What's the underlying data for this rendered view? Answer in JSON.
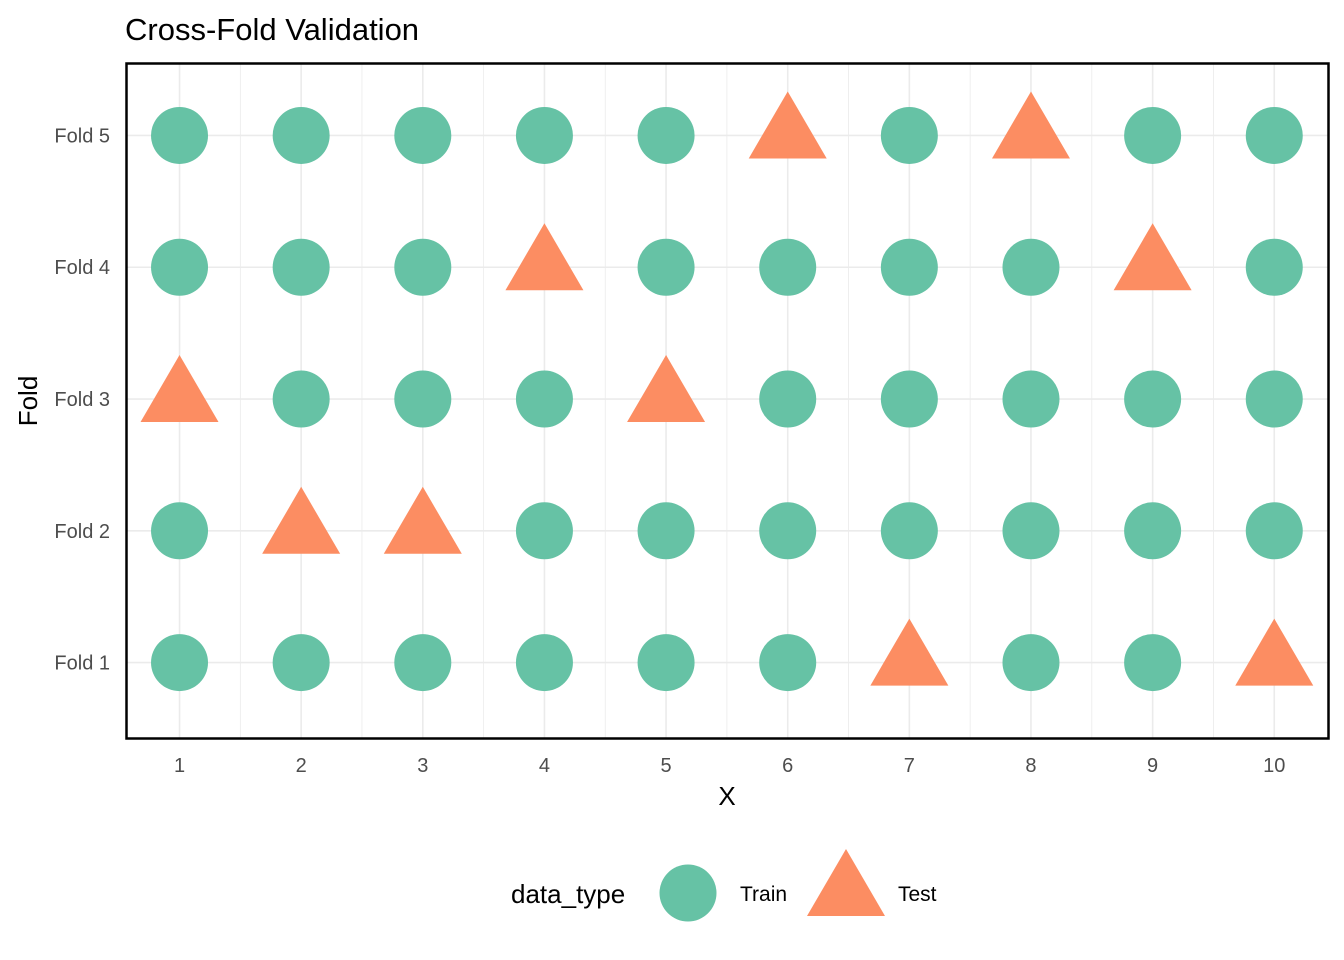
{
  "chart_data": {
    "type": "scatter",
    "title": "Cross-Fold Validation",
    "xlabel": "X",
    "ylabel": "Fold",
    "x_ticks": [
      "1",
      "2",
      "3",
      "4",
      "5",
      "6",
      "7",
      "8",
      "9",
      "10"
    ],
    "y_categories": [
      "Fold 1",
      "Fold 2",
      "Fold 3",
      "Fold 4",
      "Fold 5"
    ],
    "xlim": [
      0.56,
      10.45
    ],
    "grid": true,
    "legend": {
      "title": "data_type",
      "position": "bottom",
      "entries": [
        {
          "label": "Train",
          "shape": "circle"
        },
        {
          "label": "Test",
          "shape": "triangle"
        }
      ]
    },
    "colors": {
      "Train": "#66c2a5",
      "Test": "#fc8d62",
      "grid": "#ebebeb",
      "border": "#000000"
    },
    "series": [
      {
        "name": "Train",
        "shape": "circle",
        "points": [
          [
            1,
            "Fold 1"
          ],
          [
            2,
            "Fold 1"
          ],
          [
            3,
            "Fold 1"
          ],
          [
            4,
            "Fold 1"
          ],
          [
            5,
            "Fold 1"
          ],
          [
            6,
            "Fold 1"
          ],
          [
            8,
            "Fold 1"
          ],
          [
            9,
            "Fold 1"
          ],
          [
            1,
            "Fold 2"
          ],
          [
            4,
            "Fold 2"
          ],
          [
            5,
            "Fold 2"
          ],
          [
            6,
            "Fold 2"
          ],
          [
            7,
            "Fold 2"
          ],
          [
            8,
            "Fold 2"
          ],
          [
            9,
            "Fold 2"
          ],
          [
            10,
            "Fold 2"
          ],
          [
            2,
            "Fold 3"
          ],
          [
            3,
            "Fold 3"
          ],
          [
            4,
            "Fold 3"
          ],
          [
            6,
            "Fold 3"
          ],
          [
            7,
            "Fold 3"
          ],
          [
            8,
            "Fold 3"
          ],
          [
            9,
            "Fold 3"
          ],
          [
            10,
            "Fold 3"
          ],
          [
            1,
            "Fold 4"
          ],
          [
            2,
            "Fold 4"
          ],
          [
            3,
            "Fold 4"
          ],
          [
            5,
            "Fold 4"
          ],
          [
            6,
            "Fold 4"
          ],
          [
            7,
            "Fold 4"
          ],
          [
            8,
            "Fold 4"
          ],
          [
            10,
            "Fold 4"
          ],
          [
            1,
            "Fold 5"
          ],
          [
            2,
            "Fold 5"
          ],
          [
            3,
            "Fold 5"
          ],
          [
            4,
            "Fold 5"
          ],
          [
            5,
            "Fold 5"
          ],
          [
            7,
            "Fold 5"
          ],
          [
            9,
            "Fold 5"
          ],
          [
            10,
            "Fold 5"
          ]
        ]
      },
      {
        "name": "Test",
        "shape": "triangle",
        "points": [
          [
            7,
            "Fold 1"
          ],
          [
            10,
            "Fold 1"
          ],
          [
            2,
            "Fold 2"
          ],
          [
            3,
            "Fold 2"
          ],
          [
            1,
            "Fold 3"
          ],
          [
            5,
            "Fold 3"
          ],
          [
            4,
            "Fold 4"
          ],
          [
            9,
            "Fold 4"
          ],
          [
            6,
            "Fold 5"
          ],
          [
            8,
            "Fold 5"
          ]
        ]
      }
    ]
  }
}
